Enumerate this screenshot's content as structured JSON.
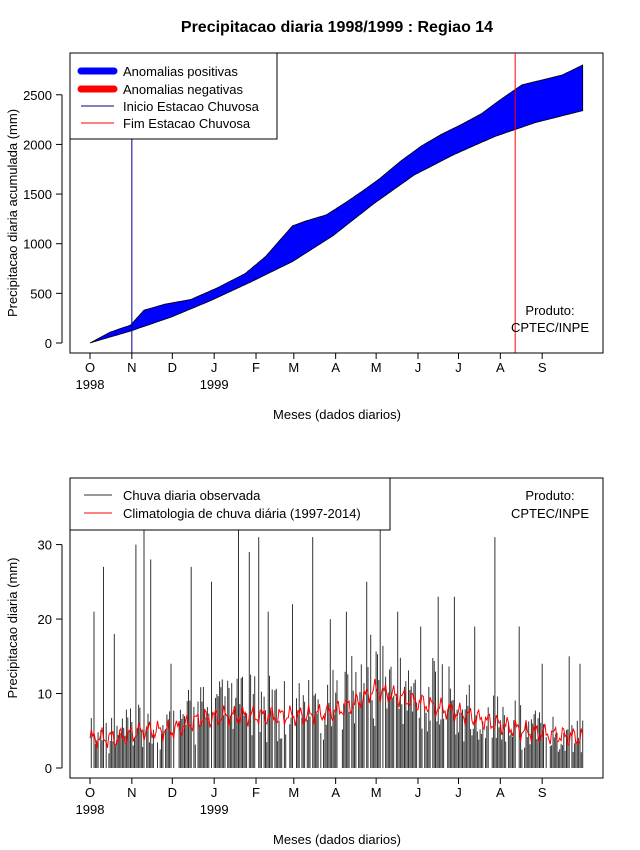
{
  "page_title": "Precipitacao diaria 1998/1999 : Regiao 14",
  "chart_data": [
    {
      "type": "area",
      "id": "cumulative",
      "title": "Precipitacao diaria 1998/1999 : Regiao 14",
      "xlabel": "Meses (dados diarios)",
      "ylabel": "Precipitacao diaria acumulada (mm)",
      "ylim": [
        0,
        2800
      ],
      "y_ticks": [
        0,
        500,
        1000,
        1500,
        2000,
        2500
      ],
      "month_ticks": [
        "O",
        "N",
        "D",
        "J",
        "F",
        "M",
        "A",
        "M",
        "J",
        "J",
        "A",
        "S"
      ],
      "month_start_days": [
        0,
        31,
        61,
        92,
        123,
        151,
        182,
        212,
        243,
        273,
        304,
        335
      ],
      "year_labels": [
        {
          "day": 0,
          "label": "1998"
        },
        {
          "day": 92,
          "label": "1999"
        }
      ],
      "x_days": 366,
      "observed_cumulative": {
        "day": [
          0,
          15,
          30,
          40,
          55,
          75,
          95,
          115,
          130,
          150,
          160,
          175,
          190,
          205,
          215,
          230,
          245,
          260,
          275,
          290,
          305,
          320,
          335,
          350,
          365
        ],
        "value": [
          0,
          110,
          180,
          330,
          390,
          440,
          560,
          700,
          870,
          1180,
          1230,
          1290,
          1420,
          1560,
          1660,
          1830,
          1980,
          2100,
          2200,
          2310,
          2460,
          2600,
          2650,
          2700,
          2800
        ]
      },
      "climatology_cumulative": {
        "day": [
          0,
          30,
          60,
          90,
          120,
          150,
          180,
          210,
          240,
          270,
          300,
          330,
          365
        ],
        "value": [
          0,
          120,
          260,
          430,
          620,
          820,
          1080,
          1400,
          1690,
          1900,
          2080,
          2220,
          2340
        ]
      },
      "rainy_season_start_day": 31,
      "rainy_season_end_day": 315,
      "colors": {
        "positive": "#0000ff",
        "negative": "#ff0000",
        "start_line": "#00008b",
        "end_line": "#ff0000"
      },
      "legend": [
        {
          "label": "Anomalias positivas",
          "style": "thick",
          "color": "#0000ff"
        },
        {
          "label": "Anomalias negativas",
          "style": "thick",
          "color": "#ff0000"
        },
        {
          "label": "Inicio Estacao Chuvosa",
          "style": "thin",
          "color": "#00008b"
        },
        {
          "label": "Fim Estacao Chuvosa",
          "style": "thin",
          "color": "#ff0000"
        }
      ],
      "product_label": "Produto:",
      "product_source": "CPTEC/INPE"
    },
    {
      "type": "bar",
      "id": "daily",
      "xlabel": "Meses (dados diarios)",
      "ylabel": "Precipitacao diaria (mm)",
      "ylim": [
        0,
        38
      ],
      "y_ticks": [
        0,
        10,
        20,
        30
      ],
      "month_ticks": [
        "O",
        "N",
        "D",
        "J",
        "F",
        "M",
        "A",
        "M",
        "J",
        "J",
        "A",
        "S"
      ],
      "month_start_days": [
        0,
        31,
        61,
        92,
        123,
        151,
        182,
        212,
        243,
        273,
        304,
        335
      ],
      "year_labels": [
        {
          "day": 0,
          "label": "1998"
        },
        {
          "day": 92,
          "label": "1999"
        }
      ],
      "x_days": 366,
      "daily_peaks": [
        {
          "day": 3,
          "value": 21
        },
        {
          "day": 10,
          "value": 27
        },
        {
          "day": 18,
          "value": 18
        },
        {
          "day": 34,
          "value": 30
        },
        {
          "day": 40,
          "value": 38
        },
        {
          "day": 45,
          "value": 28
        },
        {
          "day": 60,
          "value": 14
        },
        {
          "day": 75,
          "value": 27
        },
        {
          "day": 90,
          "value": 25
        },
        {
          "day": 110,
          "value": 36
        },
        {
          "day": 118,
          "value": 29
        },
        {
          "day": 125,
          "value": 31
        },
        {
          "day": 132,
          "value": 21
        },
        {
          "day": 150,
          "value": 22
        },
        {
          "day": 165,
          "value": 31
        },
        {
          "day": 178,
          "value": 20
        },
        {
          "day": 190,
          "value": 21
        },
        {
          "day": 205,
          "value": 25
        },
        {
          "day": 215,
          "value": 32
        },
        {
          "day": 228,
          "value": 21
        },
        {
          "day": 245,
          "value": 19
        },
        {
          "day": 258,
          "value": 23
        },
        {
          "day": 270,
          "value": 23
        },
        {
          "day": 285,
          "value": 19
        },
        {
          "day": 300,
          "value": 31
        },
        {
          "day": 318,
          "value": 19
        },
        {
          "day": 335,
          "value": 14
        },
        {
          "day": 355,
          "value": 15
        },
        {
          "day": 363,
          "value": 14
        }
      ],
      "climatology_daily": {
        "day": [
          0,
          20,
          40,
          60,
          80,
          100,
          120,
          140,
          160,
          180,
          200,
          210,
          220,
          240,
          260,
          280,
          300,
          320,
          340,
          365
        ],
        "value": [
          4,
          4,
          5,
          5,
          6.5,
          7,
          7,
          7,
          7,
          7.5,
          9,
          10.5,
          10,
          9,
          8,
          7,
          6,
          5,
          4.5,
          4
        ]
      },
      "legend": [
        {
          "label": "Chuva diaria observada",
          "color": "#333333"
        },
        {
          "label": "Climatologia de chuva diária (1997-2014)",
          "color": "#ff0000"
        }
      ],
      "product_label": "Produto:",
      "product_source": "CPTEC/INPE"
    }
  ]
}
